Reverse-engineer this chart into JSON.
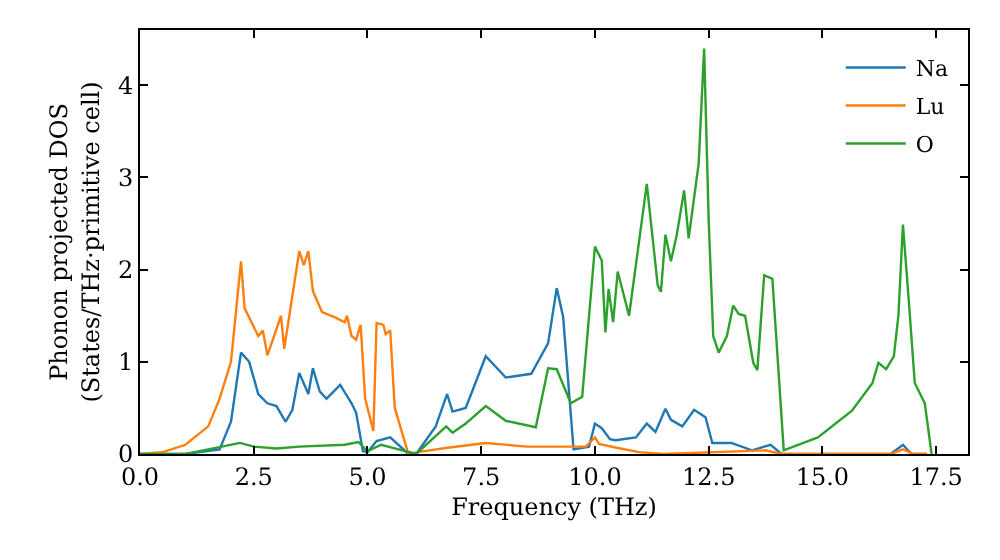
{
  "chart_data": {
    "type": "line",
    "xlabel": "Frequency (THz)",
    "ylabel": "Phonon projected DOS\n(States/THz·primitive cell)",
    "xlim": [
      0,
      18.2
    ],
    "ylim": [
      0,
      4.6
    ],
    "xticks": [
      {
        "value": 0,
        "label": "0.0"
      },
      {
        "value": 2.5,
        "label": "2.5"
      },
      {
        "value": 5,
        "label": "5.0"
      },
      {
        "value": 7.5,
        "label": "7.5"
      },
      {
        "value": 10,
        "label": "10.0"
      },
      {
        "value": 12.5,
        "label": "12.5"
      },
      {
        "value": 15,
        "label": "15.0"
      },
      {
        "value": 17.5,
        "label": "17.5"
      }
    ],
    "yticks": [
      0,
      1,
      2,
      3,
      4
    ],
    "legend": "top right",
    "marker": "none",
    "line_style": "solid",
    "series": [
      {
        "name": "Na",
        "color": "#1f77b4",
        "x": [
          0,
          1.0,
          1.75,
          2.0,
          2.22,
          2.4,
          2.6,
          2.8,
          3.0,
          3.2,
          3.35,
          3.5,
          3.7,
          3.8,
          3.95,
          4.1,
          4.4,
          4.65,
          4.75,
          4.9,
          5.0,
          5.2,
          5.5,
          5.9,
          6.07,
          6.5,
          6.75,
          6.87,
          7.16,
          7.6,
          8.04,
          8.6,
          8.97,
          9.16,
          9.3,
          9.53,
          9.87,
          10.0,
          10.15,
          10.33,
          10.45,
          10.9,
          11.14,
          11.33,
          11.55,
          11.67,
          11.92,
          12.18,
          12.43,
          12.58,
          13.0,
          13.45,
          13.86,
          14.1,
          16.5,
          16.77,
          16.96,
          17.3
        ],
        "values": [
          0,
          0,
          0.05,
          0.35,
          1.1,
          1.0,
          0.65,
          0.55,
          0.52,
          0.35,
          0.48,
          0.88,
          0.65,
          0.93,
          0.68,
          0.6,
          0.75,
          0.55,
          0.45,
          0.03,
          0.02,
          0.14,
          0.18,
          0,
          0,
          0.3,
          0.65,
          0.46,
          0.5,
          1.06,
          0.83,
          0.87,
          1.2,
          1.8,
          1.49,
          0.05,
          0.08,
          0.33,
          0.28,
          0.16,
          0.15,
          0.18,
          0.33,
          0.24,
          0.49,
          0.37,
          0.3,
          0.48,
          0.4,
          0.12,
          0.12,
          0.04,
          0.1,
          0,
          0,
          0.1,
          0,
          0
        ]
      },
      {
        "name": "Lu",
        "color": "#ff7f0e",
        "x": [
          0,
          0.5,
          1.0,
          1.5,
          1.75,
          2.0,
          2.22,
          2.3,
          2.6,
          2.7,
          2.8,
          3.1,
          3.17,
          3.5,
          3.6,
          3.7,
          3.8,
          4.0,
          4.3,
          4.5,
          4.55,
          4.65,
          4.75,
          4.85,
          4.95,
          5.13,
          5.2,
          5.35,
          5.4,
          5.5,
          5.6,
          5.9,
          6.1,
          6.8,
          7.6,
          8.5,
          9.8,
          10.0,
          10.09,
          10.45,
          10.97,
          11.5,
          13.75,
          14.1,
          16.5,
          16.77,
          17.0,
          17.3
        ],
        "values": [
          0,
          0.02,
          0.1,
          0.3,
          0.6,
          1.0,
          2.09,
          1.58,
          1.28,
          1.34,
          1.07,
          1.5,
          1.14,
          2.2,
          2.05,
          2.2,
          1.77,
          1.54,
          1.48,
          1.43,
          1.5,
          1.28,
          1.24,
          1.4,
          0.6,
          0.25,
          1.42,
          1.4,
          1.3,
          1.34,
          0.5,
          0,
          0.02,
          0.07,
          0.12,
          0.08,
          0.08,
          0.18,
          0.11,
          0.07,
          0.02,
          0,
          0.04,
          0,
          0,
          0.05,
          0,
          0
        ]
      },
      {
        "name": "O",
        "color": "#2ca02c",
        "x": [
          0,
          1.0,
          1.5,
          2.2,
          2.5,
          3.0,
          3.5,
          4.5,
          4.8,
          5.0,
          5.3,
          5.6,
          6.07,
          6.73,
          6.87,
          7.16,
          7.6,
          8.04,
          8.7,
          8.97,
          9.16,
          9.47,
          9.72,
          10.0,
          10.15,
          10.23,
          10.3,
          10.4,
          10.5,
          10.75,
          11.14,
          11.38,
          11.45,
          11.55,
          11.67,
          11.8,
          11.96,
          12.06,
          12.28,
          12.4,
          12.5,
          12.6,
          12.72,
          12.9,
          13.04,
          13.16,
          13.3,
          13.48,
          13.57,
          13.72,
          13.9,
          14.15,
          14.9,
          15.65,
          16.1,
          16.23,
          16.4,
          16.57,
          16.67,
          16.77,
          16.9,
          17.03,
          17.25,
          17.4
        ],
        "values": [
          0,
          0,
          0.05,
          0.12,
          0.08,
          0.06,
          0.08,
          0.1,
          0.13,
          0.03,
          0.1,
          0.06,
          0,
          0.3,
          0.23,
          0.33,
          0.52,
          0.36,
          0.29,
          0.93,
          0.92,
          0.55,
          0.62,
          2.25,
          2.1,
          1.32,
          1.79,
          1.43,
          1.98,
          1.5,
          2.93,
          1.83,
          1.76,
          2.38,
          2.09,
          2.38,
          2.86,
          2.34,
          3.15,
          4.4,
          2.53,
          1.28,
          1.1,
          1.28,
          1.61,
          1.52,
          1.5,
          0.99,
          0.91,
          1.94,
          1.9,
          0.04,
          0.18,
          0.47,
          0.77,
          0.99,
          0.92,
          1.06,
          1.5,
          2.49,
          1.65,
          0.77,
          0.55,
          0
        ]
      }
    ]
  }
}
